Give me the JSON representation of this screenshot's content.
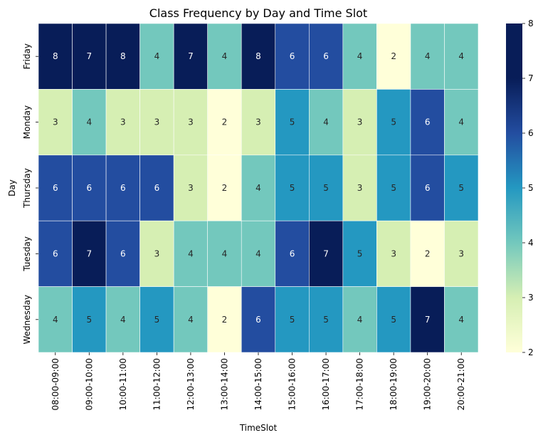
{
  "chart_data": {
    "type": "heatmap",
    "title": "Class Frequency by Day and Time Slot",
    "xlabel": "TimeSlot",
    "ylabel": "Day",
    "x_categories": [
      "08:00-09:00",
      "09:00-10:00",
      "10:00-11:00",
      "11:00-12:00",
      "12:00-13:00",
      "13:00-14:00",
      "14:00-15:00",
      "15:00-16:00",
      "16:00-17:00",
      "17:00-18:00",
      "18:00-19:00",
      "19:00-20:00",
      "20:00-21:00"
    ],
    "y_categories": [
      "Friday",
      "Monday",
      "Thursday",
      "Tuesday",
      "Wednesday"
    ],
    "values": [
      [
        8,
        7,
        8,
        4,
        7,
        4,
        8,
        6,
        6,
        4,
        2,
        4,
        4
      ],
      [
        3,
        4,
        3,
        3,
        3,
        2,
        3,
        5,
        4,
        3,
        5,
        6,
        4
      ],
      [
        6,
        6,
        6,
        6,
        3,
        2,
        4,
        5,
        5,
        3,
        5,
        6,
        5
      ],
      [
        6,
        7,
        6,
        3,
        4,
        4,
        4,
        6,
        7,
        5,
        3,
        2,
        3
      ],
      [
        4,
        5,
        4,
        5,
        4,
        2,
        6,
        5,
        5,
        4,
        5,
        7,
        4
      ]
    ],
    "value_range": [
      2,
      8
    ],
    "colorbar_ticks": [
      2,
      3,
      4,
      5,
      6,
      7,
      8
    ],
    "colormap": "YlGnBu",
    "colors": {
      "2": "#ffffd9",
      "3": "#d6efb3",
      "4": "#73c8bd",
      "5": "#2498c1",
      "6": "#234da0",
      "7": "#081d58",
      "low": "#ffffd9",
      "high": "#081d58"
    }
  }
}
